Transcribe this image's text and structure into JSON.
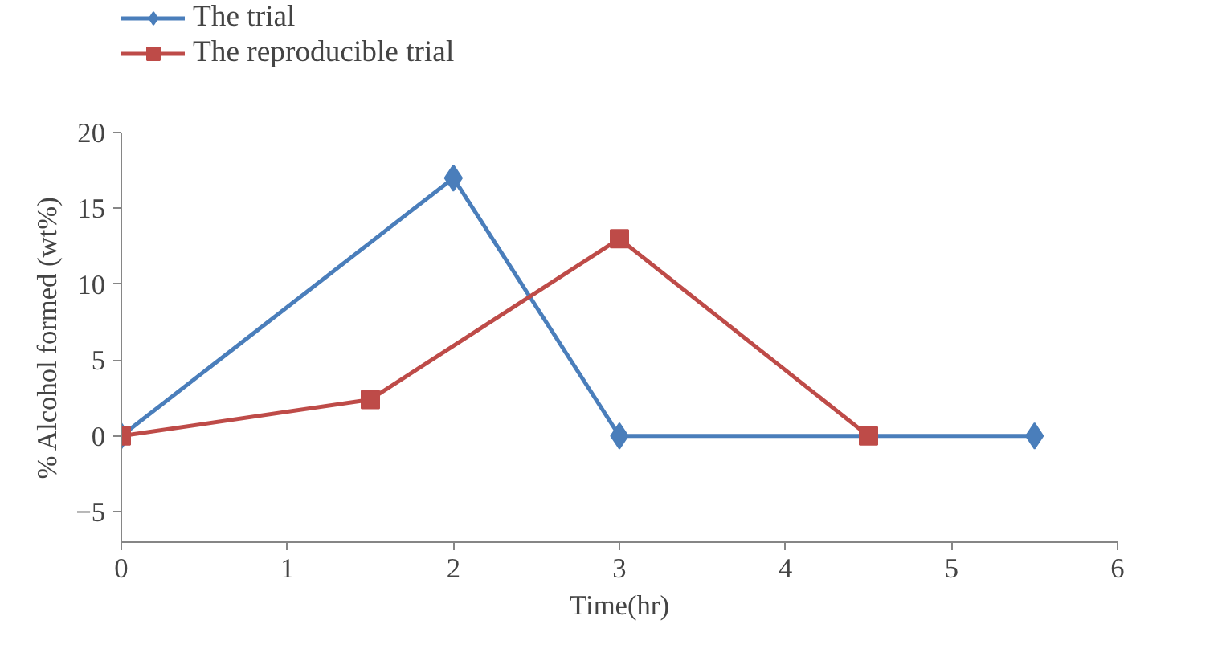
{
  "chart_data": {
    "type": "line",
    "xlabel": "Time(hr)",
    "ylabel": "% Alcohol formed (wt%)",
    "xlim": [
      0,
      6
    ],
    "ylim": [
      -7,
      20
    ],
    "xticks": [
      0,
      1,
      2,
      3,
      4,
      5,
      6
    ],
    "yticks": [
      -5,
      0,
      5,
      10,
      15,
      20
    ],
    "grid": false,
    "legend": "top left",
    "line_style": "solid",
    "series": [
      {
        "name": "The trial",
        "color": "#4a7ebb",
        "marker": "diamond",
        "x": [
          0,
          2,
          3,
          5.5
        ],
        "values": [
          0,
          17,
          0,
          0
        ]
      },
      {
        "name": "The reproducible trial",
        "color": "#be4b48",
        "marker": "square",
        "x": [
          0,
          1.5,
          3,
          4.5
        ],
        "values": [
          0,
          2.4,
          13,
          0
        ]
      }
    ]
  }
}
